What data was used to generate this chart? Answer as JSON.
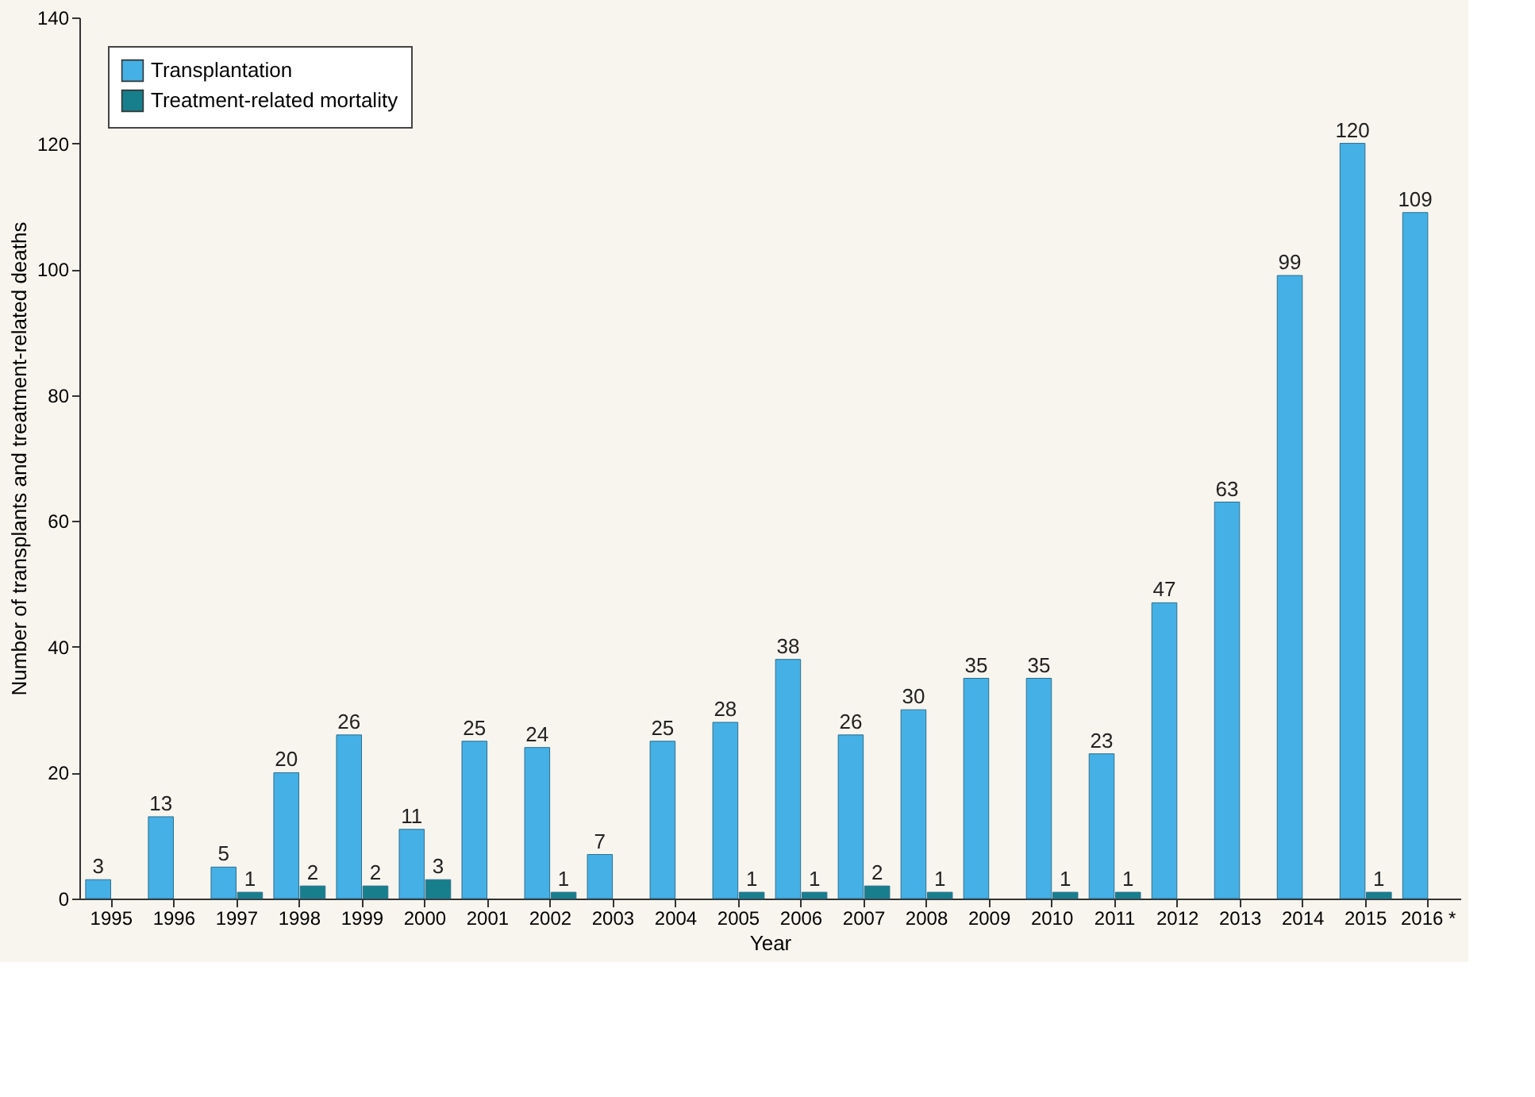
{
  "chart_data": {
    "type": "bar",
    "xlabel": "Year",
    "ylabel": "Number of transplants and treatment-related deaths",
    "categories": [
      "1995",
      "1996",
      "1997",
      "1998",
      "1999",
      "2000",
      "2001",
      "2002",
      "2003",
      "2004",
      "2005",
      "2006",
      "2007",
      "2008",
      "2009",
      "2010",
      "2011",
      "2012",
      "2013",
      "2014",
      "2015",
      "2016 *"
    ],
    "series": [
      {
        "name": "Transplantation",
        "color": "#45b0e5",
        "values": [
          3,
          13,
          5,
          20,
          26,
          11,
          25,
          24,
          7,
          25,
          28,
          38,
          26,
          30,
          35,
          35,
          23,
          47,
          63,
          99,
          120,
          109
        ]
      },
      {
        "name": "Treatment-related mortality",
        "color": "#177f8c",
        "values": [
          null,
          null,
          1,
          2,
          2,
          3,
          null,
          1,
          null,
          null,
          1,
          1,
          2,
          1,
          null,
          1,
          1,
          null,
          null,
          null,
          1,
          null
        ]
      }
    ],
    "ylim": [
      0,
      140
    ],
    "yticks": [
      0,
      20,
      40,
      60,
      80,
      100,
      120,
      140
    ],
    "data_labels": true,
    "legend": "top left",
    "grid": false
  }
}
